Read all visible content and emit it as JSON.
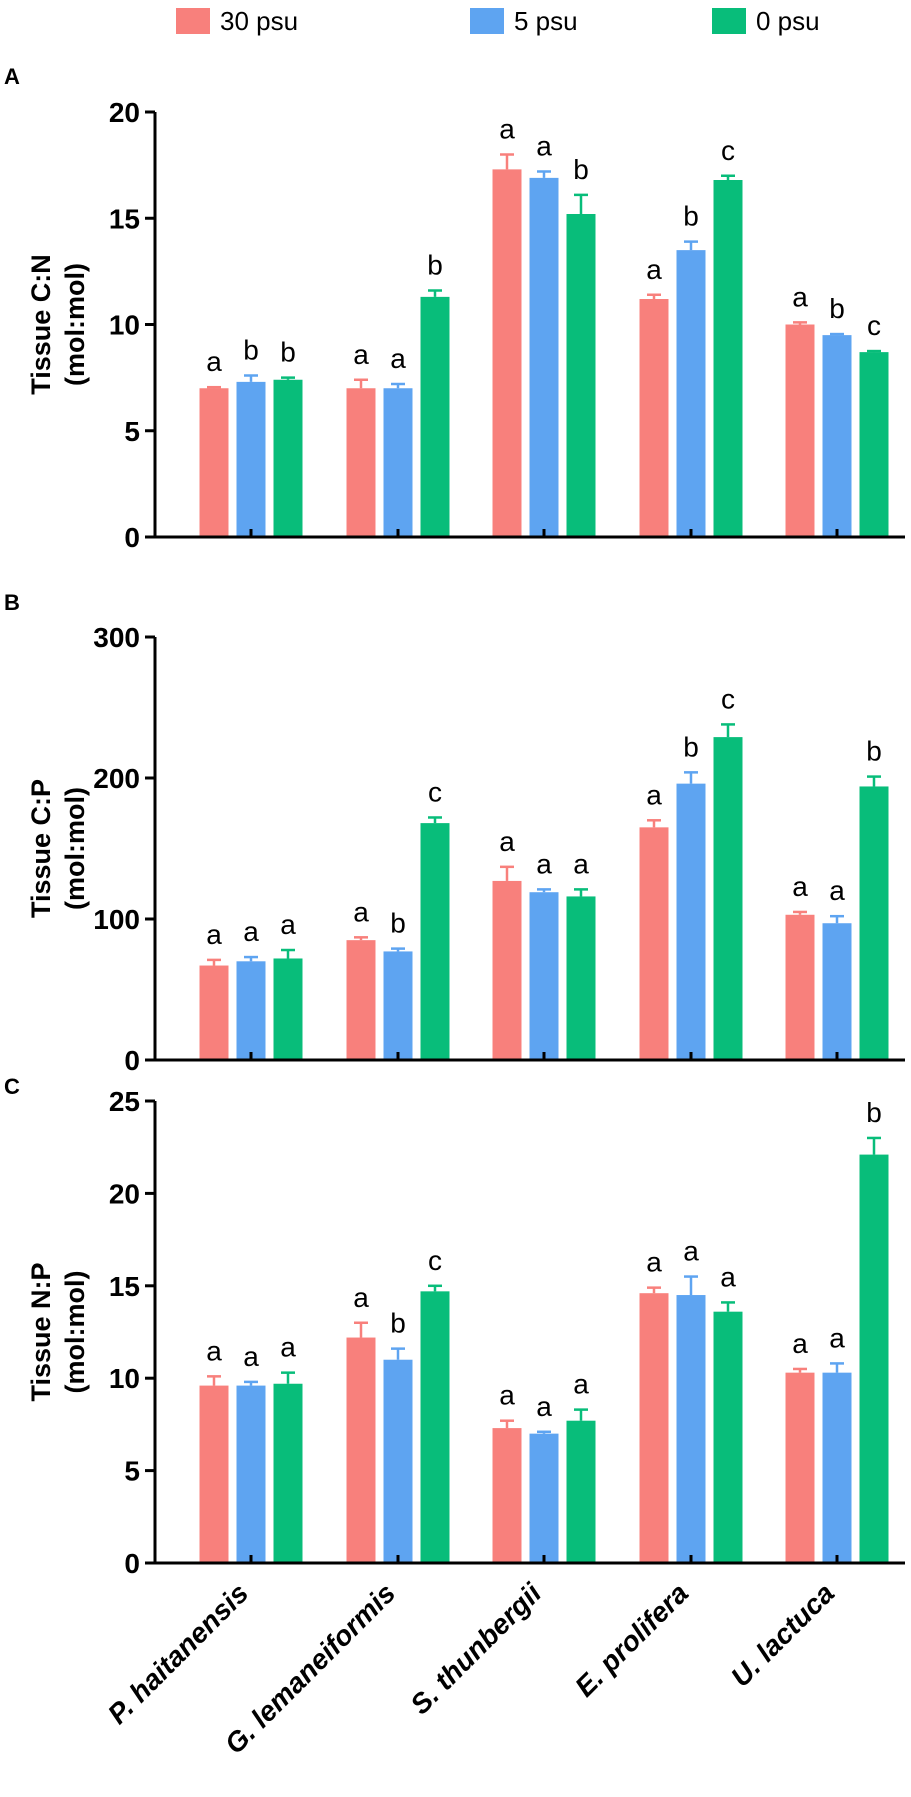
{
  "legend": [
    {
      "label": "30 psu",
      "color": "#f8807c"
    },
    {
      "label": "5 psu",
      "color": "#5ea4f1"
    },
    {
      "label": "0 psu",
      "color": "#08bd7a"
    }
  ],
  "chart_data": [
    {
      "type": "bar",
      "panel": "A",
      "ylabel": "Tissue C:N",
      "ylabel2": "(mol:mol)",
      "ylim": [
        0,
        20
      ],
      "yticks": [
        0,
        5,
        10,
        15,
        20
      ],
      "categories": [
        "P. haitanensis",
        "G. lemaneiformis",
        "S. thunbergii",
        "E. prolifera",
        "U. lactuca"
      ],
      "series": [
        {
          "name": "30 psu",
          "values": [
            7.0,
            7.0,
            17.3,
            11.2,
            10.0
          ],
          "errors": [
            0.05,
            0.4,
            0.7,
            0.2,
            0.1
          ],
          "letters": [
            "a",
            "a",
            "a",
            "a",
            "a"
          ]
        },
        {
          "name": "5 psu",
          "values": [
            7.3,
            7.0,
            16.9,
            13.5,
            9.5
          ],
          "errors": [
            0.3,
            0.2,
            0.3,
            0.4,
            0.05
          ],
          "letters": [
            "b",
            "a",
            "a",
            "b",
            "b"
          ]
        },
        {
          "name": "0 psu",
          "values": [
            7.4,
            11.3,
            15.2,
            16.8,
            8.7
          ],
          "errors": [
            0.1,
            0.3,
            0.9,
            0.2,
            0.05
          ],
          "letters": [
            "b",
            "b",
            "b",
            "c",
            "c"
          ]
        }
      ]
    },
    {
      "type": "bar",
      "panel": "B",
      "ylabel": "Tissue C:P",
      "ylabel2": "(mol:mol)",
      "ylim": [
        0,
        300
      ],
      "yticks": [
        0,
        100,
        200,
        300
      ],
      "categories": [
        "P. haitanensis",
        "G. lemaneiformis",
        "S. thunbergii",
        "E. prolifera",
        "U. lactuca"
      ],
      "series": [
        {
          "name": "30 psu",
          "values": [
            67,
            85,
            127,
            165,
            103
          ],
          "errors": [
            4,
            2,
            10,
            5,
            2
          ],
          "letters": [
            "a",
            "a",
            "a",
            "a",
            "a"
          ]
        },
        {
          "name": "5 psu",
          "values": [
            70,
            77,
            119,
            196,
            97
          ],
          "errors": [
            3,
            2,
            2,
            8,
            5
          ],
          "letters": [
            "a",
            "b",
            "a",
            "b",
            "a"
          ]
        },
        {
          "name": "0 psu",
          "values": [
            72,
            168,
            116,
            229,
            194
          ],
          "errors": [
            6,
            4,
            5,
            9,
            7
          ],
          "letters": [
            "a",
            "c",
            "a",
            "c",
            "b"
          ]
        }
      ]
    },
    {
      "type": "bar",
      "panel": "C",
      "ylabel": "Tissue N:P",
      "ylabel2": "(mol:mol)",
      "ylim": [
        0,
        25
      ],
      "yticks": [
        0,
        5,
        10,
        15,
        20,
        25
      ],
      "categories": [
        "P. haitanensis",
        "G. lemaneiformis",
        "S. thunbergii",
        "E. prolifera",
        "U. lactuca"
      ],
      "series": [
        {
          "name": "30 psu",
          "values": [
            9.6,
            12.2,
            7.3,
            14.6,
            10.3
          ],
          "errors": [
            0.5,
            0.8,
            0.4,
            0.3,
            0.2
          ],
          "letters": [
            "a",
            "a",
            "a",
            "a",
            "a"
          ]
        },
        {
          "name": "5 psu",
          "values": [
            9.6,
            11.0,
            7.0,
            14.5,
            10.3
          ],
          "errors": [
            0.2,
            0.6,
            0.1,
            1.0,
            0.5
          ],
          "letters": [
            "a",
            "b",
            "a",
            "a",
            "a"
          ]
        },
        {
          "name": "0 psu",
          "values": [
            9.7,
            14.7,
            7.7,
            13.6,
            22.1
          ],
          "errors": [
            0.6,
            0.3,
            0.6,
            0.5,
            0.9
          ],
          "letters": [
            "a",
            "c",
            "a",
            "a",
            "b"
          ]
        }
      ]
    }
  ]
}
